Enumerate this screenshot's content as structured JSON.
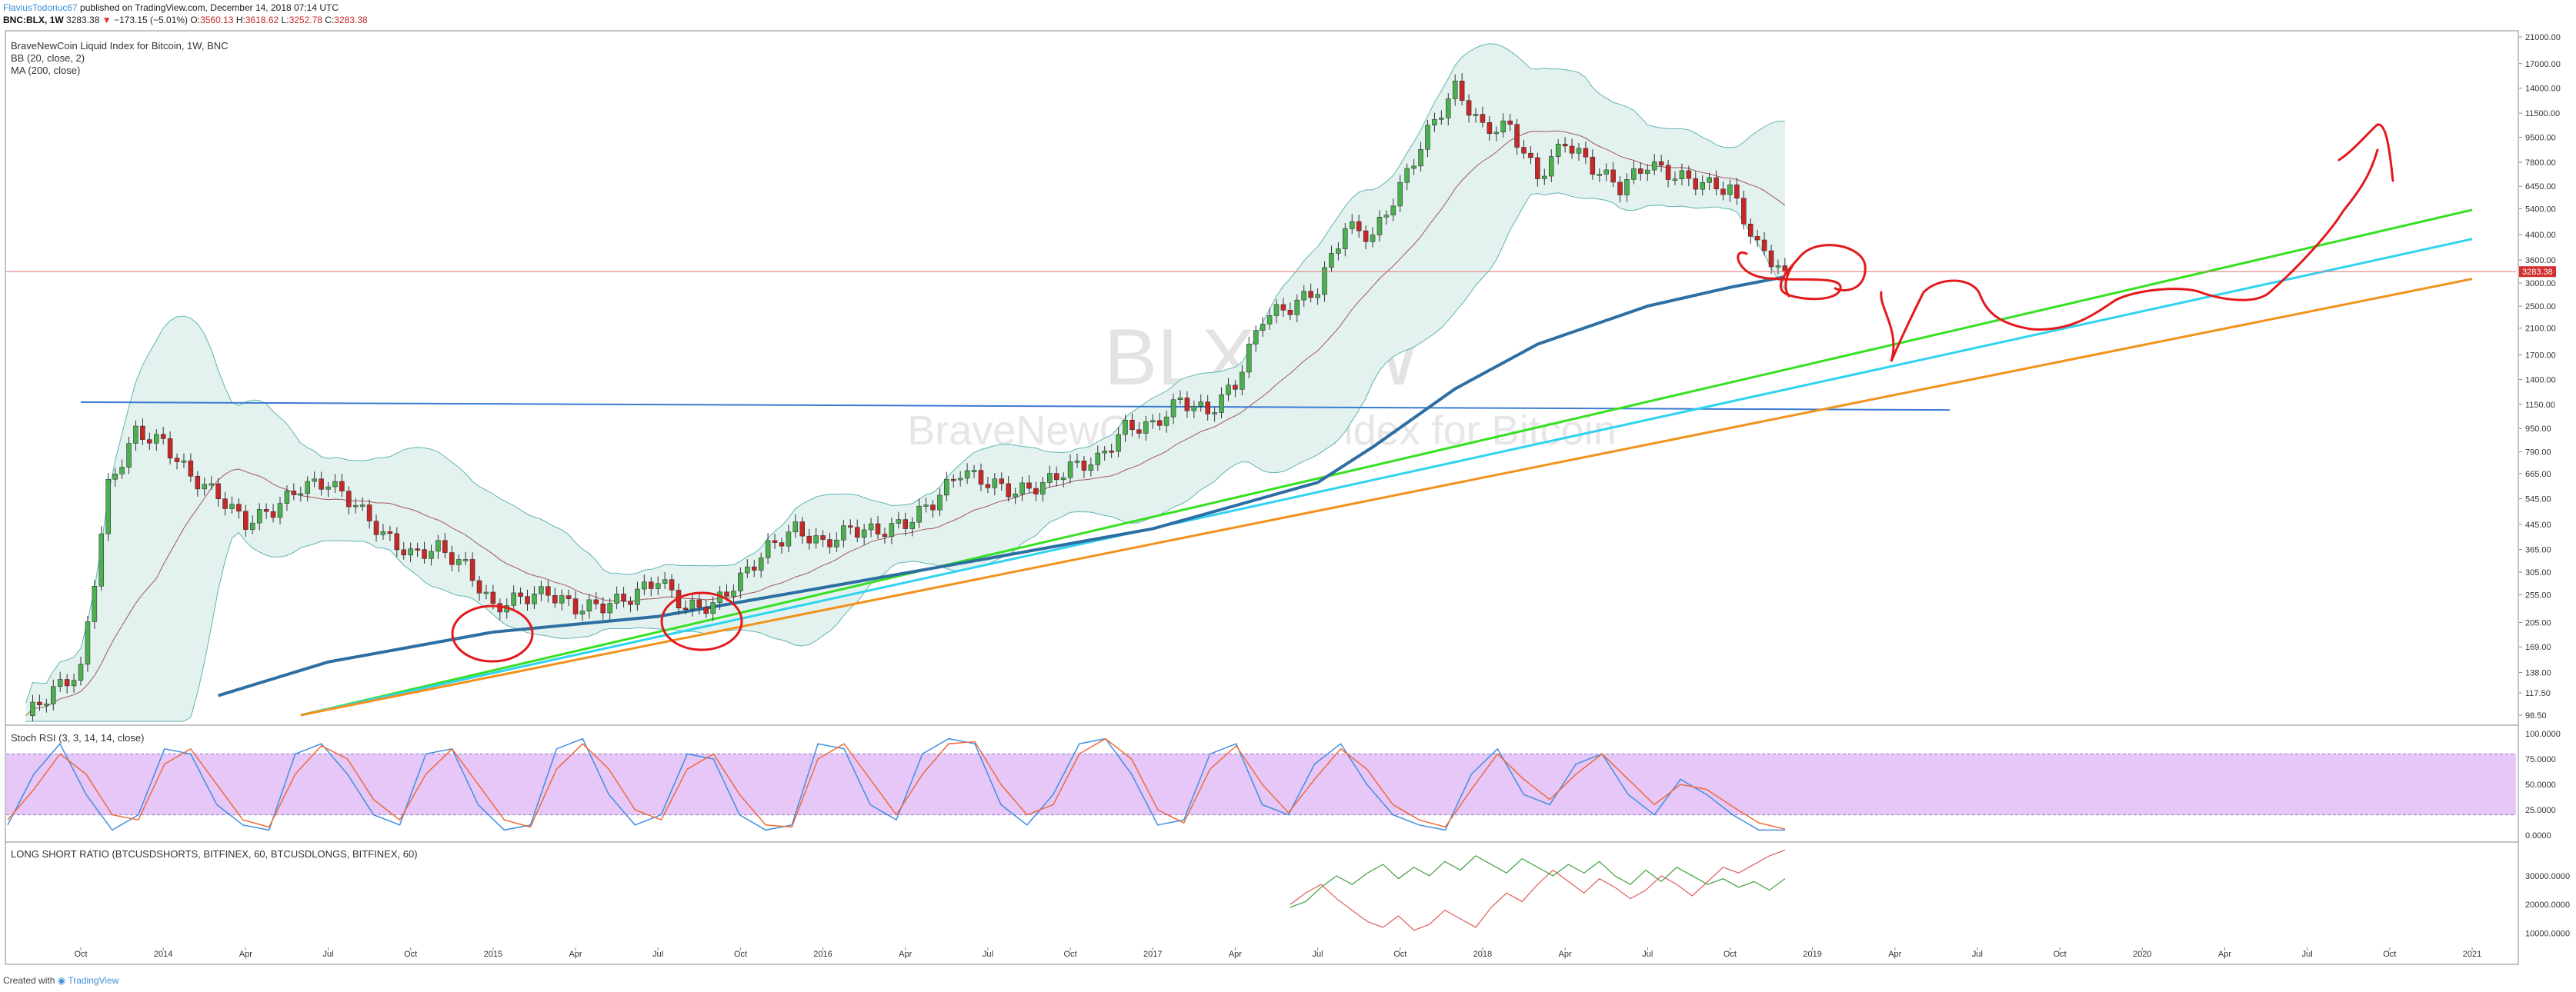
{
  "header": {
    "author": "FlaviusTodoriuc67",
    "published": " published on TradingView.com, December 14, 2018 07:14 UTC",
    "symbol": "BNC:BLX, 1W",
    "last": "3283.38",
    "change_arrow": "▼",
    "change": "−173.15 (−5.01%)",
    "o_label": "O:",
    "o": "3560.13",
    "h_label": "H:",
    "h": "3618.62",
    "l_label": "L:",
    "l": "3252.78",
    "c_label": "C:",
    "c": "3283.38"
  },
  "footer": {
    "created": "Created with",
    "brand": "TradingView"
  },
  "colors": {
    "up": "#4caf50",
    "down": "#c62828",
    "bb_fill": "#e3f2ef",
    "bb_line": "#5fb4b2",
    "bb_basis": "#a0585a",
    "ma200": "#2d6fa3",
    "hline": "#3b7bd1",
    "green_line": "#36e021",
    "cyan_line": "#2fd3ef",
    "orange_line": "#f2911c",
    "red_ink": "#e3191c",
    "rsi_band": "#e6c7f7",
    "rsi_k": "#3f8fe0",
    "rsi_d": "#f06a3a",
    "lsr_shorts": "#e05a5a",
    "lsr_longs": "#3f9f3f",
    "price_line": "#e57373"
  },
  "chart_data": [
    {
      "type": "line",
      "title": "BraveNewCoin Liquid Index for Bitcoin, 1W, BNC",
      "indicators": [
        "BB (20, close, 2)",
        "MA (200, close)"
      ],
      "watermark": "BLX, 1W",
      "watermark_sub": "BraveNewCoin Liquid Index for Bitcoin",
      "y_scale": "log",
      "y_ticks": [
        "21000.00",
        "17000.00",
        "14000.00",
        "11500.00",
        "9500.00",
        "7800.00",
        "6450.00",
        "5400.00",
        "4400.00",
        "3600.00",
        "3000.00",
        "2500.00",
        "2100.00",
        "1700.00",
        "1400.00",
        "1150.00",
        "950.00",
        "790.00",
        "665.00",
        "545.00",
        "445.00",
        "365.00",
        "305.00",
        "255.00",
        "205.00",
        "169.00",
        "138.00",
        "117.50",
        "98.50"
      ],
      "y_tick_values": [
        21000,
        17000,
        14000,
        11500,
        9500,
        7800,
        6450,
        5400,
        4400,
        3600,
        3000,
        2500,
        2100,
        1700,
        1400,
        1150,
        950,
        790,
        665,
        545,
        445,
        365,
        305,
        255,
        205,
        169,
        138,
        117.5,
        98.5
      ],
      "x_ticks": [
        "Oct",
        "2014",
        "Apr",
        "Jul",
        "Oct",
        "2015",
        "Apr",
        "Jul",
        "Oct",
        "2016",
        "Apr",
        "Jul",
        "Oct",
        "2017",
        "Apr",
        "Jul",
        "Oct",
        "2018",
        "Apr",
        "Jul",
        "Oct",
        "2019",
        "Apr",
        "Jul",
        "Oct",
        "2020",
        "Apr",
        "Jul",
        "Oct",
        "2021"
      ],
      "x_tick_dates": [
        "2013-10",
        "2014-01",
        "2014-04",
        "2014-07",
        "2014-10",
        "2015-01",
        "2015-04",
        "2015-07",
        "2015-10",
        "2016-01",
        "2016-04",
        "2016-07",
        "2016-10",
        "2017-01",
        "2017-04",
        "2017-07",
        "2017-10",
        "2018-01",
        "2018-04",
        "2018-07",
        "2018-10",
        "2019-01",
        "2019-04",
        "2019-07",
        "2019-10",
        "2020-01",
        "2020-04",
        "2020-07",
        "2020-10",
        "2021-01"
      ],
      "last_price_label": "3283.38",
      "last_price": 3283.38,
      "series": [
        {
          "name": "BraveNewCoin Liquid Index for Bitcoin",
          "kind": "close",
          "points": [
            [
              "2013-08",
              98
            ],
            [
              "2013-09",
              120
            ],
            [
              "2013-10",
              140
            ],
            [
              "2013-11",
              600
            ],
            [
              "2013-12",
              920
            ],
            [
              "2014-01",
              850
            ],
            [
              "2014-02",
              650
            ],
            [
              "2014-03",
              560
            ],
            [
              "2014-04",
              450
            ],
            [
              "2014-05",
              500
            ],
            [
              "2014-06",
              600
            ],
            [
              "2014-07",
              620
            ],
            [
              "2014-08",
              520
            ],
            [
              "2014-09",
              410
            ],
            [
              "2014-10",
              350
            ],
            [
              "2014-11",
              370
            ],
            [
              "2014-12",
              320
            ],
            [
              "2015-01",
              230
            ],
            [
              "2015-02",
              250
            ],
            [
              "2015-03",
              260
            ],
            [
              "2015-04",
              230
            ],
            [
              "2015-05",
              235
            ],
            [
              "2015-06",
              250
            ],
            [
              "2015-07",
              290
            ],
            [
              "2015-08",
              230
            ],
            [
              "2015-09",
              235
            ],
            [
              "2015-10",
              290
            ],
            [
              "2015-11",
              370
            ],
            [
              "2015-12",
              430
            ],
            [
              "2016-01",
              380
            ],
            [
              "2016-02",
              430
            ],
            [
              "2016-03",
              420
            ],
            [
              "2016-04",
              450
            ],
            [
              "2016-05",
              530
            ],
            [
              "2016-06",
              680
            ],
            [
              "2016-07",
              620
            ],
            [
              "2016-08",
              575
            ],
            [
              "2016-09",
              610
            ],
            [
              "2016-10",
              700
            ],
            [
              "2016-11",
              740
            ],
            [
              "2016-12",
              960
            ],
            [
              "2017-01",
              970
            ],
            [
              "2017-02",
              1190
            ],
            [
              "2017-03",
              1080
            ],
            [
              "2017-04",
              1350
            ],
            [
              "2017-05",
              2300
            ],
            [
              "2017-06",
              2480
            ],
            [
              "2017-07",
              2870
            ],
            [
              "2017-08",
              4700
            ],
            [
              "2017-09",
              4340
            ],
            [
              "2017-10",
              6400
            ],
            [
              "2017-11",
              9900
            ],
            [
              "2017-12",
              14000
            ],
            [
              "2018-01",
              10200
            ],
            [
              "2018-02",
              10300
            ],
            [
              "2018-03",
              6900
            ],
            [
              "2018-04",
              9200
            ],
            [
              "2018-05",
              7500
            ],
            [
              "2018-06",
              6400
            ],
            [
              "2018-07",
              7700
            ],
            [
              "2018-08",
              7000
            ],
            [
              "2018-09",
              6600
            ],
            [
              "2018-10",
              6300
            ],
            [
              "2018-11",
              4000
            ],
            [
              "2018-12",
              3283
            ]
          ]
        },
        {
          "name": "MA (200, close)",
          "points": [
            [
              "2014-03",
              115
            ],
            [
              "2014-07",
              150
            ],
            [
              "2015-01",
              190
            ],
            [
              "2015-07",
              215
            ],
            [
              "2016-01",
              270
            ],
            [
              "2016-07",
              340
            ],
            [
              "2017-01",
              430
            ],
            [
              "2017-07",
              620
            ],
            [
              "2017-09",
              820
            ],
            [
              "2017-12",
              1300
            ],
            [
              "2018-03",
              1850
            ],
            [
              "2018-07",
              2500
            ],
            [
              "2018-10",
              2900
            ],
            [
              "2018-12",
              3150
            ]
          ]
        },
        {
          "name": "Horizontal level",
          "kind": "drawing",
          "points": [
            [
              "2013-10",
              1170
            ],
            [
              "2019-06",
              1100
            ]
          ]
        },
        {
          "name": "Trendline green",
          "kind": "drawing",
          "points": [
            [
              "2014-06",
              98.5
            ],
            [
              "2021-01",
              5350
            ]
          ]
        },
        {
          "name": "Trendline cyan",
          "kind": "drawing",
          "points": [
            [
              "2014-06",
              98.5
            ],
            [
              "2021-01",
              4250
            ]
          ]
        },
        {
          "name": "Trendline orange",
          "kind": "drawing",
          "points": [
            [
              "2014-06",
              98.5
            ],
            [
              "2021-01",
              3100
            ]
          ]
        }
      ]
    },
    {
      "type": "line",
      "title": "Stoch RSI (3, 3, 14, 14, close)",
      "y_ticks": [
        "100.0000",
        "75.0000",
        "50.0000",
        "25.0000",
        "0.0000"
      ],
      "y_tick_values": [
        100,
        75,
        50,
        25,
        0
      ],
      "band": [
        20,
        80
      ],
      "series": [
        {
          "name": "K",
          "values": [
            10,
            60,
            90,
            40,
            5,
            20,
            85,
            80,
            30,
            10,
            5,
            80,
            90,
            60,
            20,
            10,
            80,
            85,
            30,
            5,
            10,
            85,
            95,
            40,
            10,
            20,
            80,
            75,
            20,
            5,
            10,
            90,
            85,
            30,
            15,
            80,
            95,
            90,
            30,
            10,
            40,
            90,
            95,
            60,
            10,
            15,
            80,
            90,
            30,
            20,
            70,
            90,
            50,
            20,
            10,
            5,
            60,
            85,
            40,
            30,
            70,
            80,
            40,
            20,
            55,
            40,
            20,
            5,
            5
          ]
        },
        {
          "name": "D",
          "values": [
            15,
            45,
            80,
            60,
            20,
            15,
            70,
            85,
            50,
            15,
            8,
            60,
            88,
            75,
            35,
            15,
            60,
            85,
            50,
            15,
            8,
            65,
            90,
            65,
            25,
            15,
            65,
            80,
            40,
            10,
            8,
            75,
            90,
            55,
            20,
            60,
            90,
            92,
            50,
            20,
            30,
            80,
            95,
            75,
            25,
            12,
            65,
            88,
            50,
            22,
            55,
            85,
            65,
            30,
            15,
            8,
            45,
            80,
            55,
            35,
            60,
            80,
            55,
            30,
            50,
            45,
            28,
            12,
            6
          ]
        }
      ]
    },
    {
      "type": "line",
      "title": "LONG SHORT RATIO (BTCUSDSHORTS, BITFINEX, 60, BTCUSDLONGS, BITFINEX, 60)",
      "y_ticks": [
        "30000.0000",
        "20000.0000",
        "10000.0000"
      ],
      "y_tick_values": [
        30000,
        20000,
        10000
      ],
      "series": [
        {
          "name": "BTCUSDSHORTS",
          "values": [
            20000,
            24000,
            27000,
            22000,
            18000,
            14000,
            12000,
            16000,
            11000,
            13000,
            18000,
            15000,
            12000,
            19000,
            24000,
            21000,
            27000,
            32000,
            28000,
            24000,
            29000,
            26000,
            22000,
            25000,
            30000,
            27000,
            23000,
            28000,
            33000,
            31000,
            34000,
            37000,
            39000
          ]
        },
        {
          "name": "BTCUSDLONGS",
          "values": [
            19000,
            21000,
            26000,
            30000,
            27000,
            31000,
            34000,
            29000,
            33000,
            30000,
            35000,
            32000,
            37000,
            34000,
            31000,
            36000,
            33000,
            30000,
            34000,
            31000,
            35000,
            30000,
            27000,
            32000,
            28000,
            33000,
            30000,
            27000,
            29000,
            26000,
            28000,
            25000,
            29000
          ]
        }
      ]
    }
  ]
}
